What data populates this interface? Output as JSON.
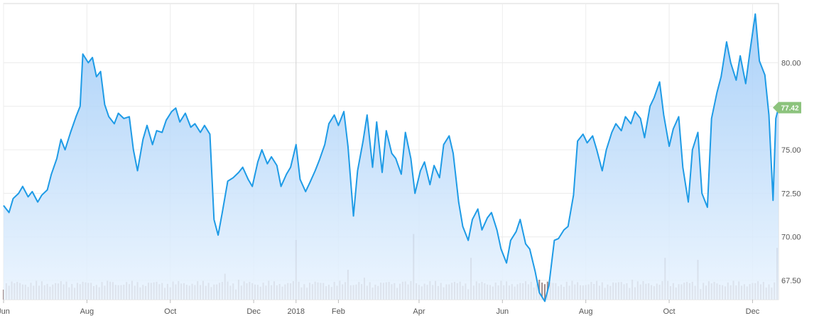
{
  "chart_data": {
    "type": "area",
    "title": "",
    "xlabel": "",
    "ylabel": "",
    "x_range": [
      "2017-06-01",
      "2018-12-20"
    ],
    "ylim": [
      66.4,
      83.4
    ],
    "y_ticks": [
      "67.50",
      "70.00",
      "72.50",
      "75.00",
      "77.50",
      "80.00"
    ],
    "x_ticks": [
      {
        "label": "Jun",
        "date": "2017-06-01"
      },
      {
        "label": "Aug",
        "date": "2017-08-01"
      },
      {
        "label": "Oct",
        "date": "2017-10-01"
      },
      {
        "label": "Dec",
        "date": "2017-12-01"
      },
      {
        "label": "2018",
        "date": "2018-01-01"
      },
      {
        "label": "Feb",
        "date": "2018-02-01"
      },
      {
        "label": "Apr",
        "date": "2018-04-01"
      },
      {
        "label": "Jun",
        "date": "2018-06-01"
      },
      {
        "label": "Aug",
        "date": "2018-08-01"
      },
      {
        "label": "Oct",
        "date": "2018-10-01"
      },
      {
        "label": "Dec",
        "date": "2018-12-01"
      }
    ],
    "grid": true,
    "line_color": "#1e9be6",
    "area_color": "#9cc9f7",
    "volume_color": "#a08a8a",
    "last_value_label": "77.42",
    "last_value_color": "#8cc37d",
    "series": [
      {
        "values": [
          [
            "2017-06-01",
            71.8
          ],
          [
            "2017-06-05",
            71.4
          ],
          [
            "2017-06-08",
            72.2
          ],
          [
            "2017-06-12",
            72.5
          ],
          [
            "2017-06-15",
            72.9
          ],
          [
            "2017-06-19",
            72.3
          ],
          [
            "2017-06-22",
            72.6
          ],
          [
            "2017-06-26",
            72.0
          ],
          [
            "2017-06-29",
            72.4
          ],
          [
            "2017-07-03",
            72.7
          ],
          [
            "2017-07-06",
            73.6
          ],
          [
            "2017-07-10",
            74.5
          ],
          [
            "2017-07-13",
            75.6
          ],
          [
            "2017-07-16",
            75.0
          ],
          [
            "2017-07-20",
            76.0
          ],
          [
            "2017-07-24",
            76.9
          ],
          [
            "2017-07-27",
            77.5
          ],
          [
            "2017-07-29",
            80.5
          ],
          [
            "2017-08-02",
            80.0
          ],
          [
            "2017-08-05",
            80.3
          ],
          [
            "2017-08-08",
            79.2
          ],
          [
            "2017-08-11",
            79.5
          ],
          [
            "2017-08-14",
            77.6
          ],
          [
            "2017-08-17",
            76.9
          ],
          [
            "2017-08-21",
            76.5
          ],
          [
            "2017-08-24",
            77.1
          ],
          [
            "2017-08-28",
            76.8
          ],
          [
            "2017-09-01",
            76.9
          ],
          [
            "2017-09-04",
            75.0
          ],
          [
            "2017-09-07",
            73.8
          ],
          [
            "2017-09-11",
            75.6
          ],
          [
            "2017-09-14",
            76.4
          ],
          [
            "2017-09-18",
            75.3
          ],
          [
            "2017-09-21",
            76.1
          ],
          [
            "2017-09-25",
            76.0
          ],
          [
            "2017-09-28",
            76.7
          ],
          [
            "2017-10-02",
            77.2
          ],
          [
            "2017-10-05",
            77.4
          ],
          [
            "2017-10-08",
            76.6
          ],
          [
            "2017-10-12",
            77.1
          ],
          [
            "2017-10-16",
            76.3
          ],
          [
            "2017-10-19",
            76.5
          ],
          [
            "2017-10-23",
            76.0
          ],
          [
            "2017-10-26",
            76.4
          ],
          [
            "2017-10-30",
            75.9
          ],
          [
            "2017-11-02",
            71.0
          ],
          [
            "2017-11-05",
            70.1
          ],
          [
            "2017-11-08",
            71.4
          ],
          [
            "2017-11-12",
            73.2
          ],
          [
            "2017-11-16",
            73.4
          ],
          [
            "2017-11-20",
            73.7
          ],
          [
            "2017-11-23",
            74.0
          ],
          [
            "2017-11-27",
            73.3
          ],
          [
            "2017-11-30",
            72.9
          ],
          [
            "2017-12-04",
            74.3
          ],
          [
            "2017-12-07",
            75.0
          ],
          [
            "2017-12-11",
            74.2
          ],
          [
            "2017-12-14",
            74.6
          ],
          [
            "2017-12-18",
            74.1
          ],
          [
            "2017-12-21",
            72.9
          ],
          [
            "2017-12-25",
            73.6
          ],
          [
            "2017-12-28",
            74.0
          ],
          [
            "2018-01-01",
            75.3
          ],
          [
            "2018-01-04",
            73.3
          ],
          [
            "2018-01-08",
            72.6
          ],
          [
            "2018-01-11",
            73.1
          ],
          [
            "2018-01-15",
            73.8
          ],
          [
            "2018-01-18",
            74.4
          ],
          [
            "2018-01-22",
            75.3
          ],
          [
            "2018-01-25",
            76.5
          ],
          [
            "2018-01-29",
            77.0
          ],
          [
            "2018-02-01",
            76.4
          ],
          [
            "2018-02-05",
            77.2
          ],
          [
            "2018-02-08",
            75.2
          ],
          [
            "2018-02-12",
            71.2
          ],
          [
            "2018-02-15",
            73.8
          ],
          [
            "2018-02-19",
            75.5
          ],
          [
            "2018-02-22",
            77.0
          ],
          [
            "2018-02-26",
            74.0
          ],
          [
            "2018-03-01",
            76.6
          ],
          [
            "2018-03-05",
            73.7
          ],
          [
            "2018-03-08",
            76.1
          ],
          [
            "2018-03-12",
            74.8
          ],
          [
            "2018-03-15",
            74.5
          ],
          [
            "2018-03-19",
            73.6
          ],
          [
            "2018-03-22",
            76.0
          ],
          [
            "2018-03-26",
            74.5
          ],
          [
            "2018-03-29",
            72.5
          ],
          [
            "2018-04-02",
            73.8
          ],
          [
            "2018-04-05",
            74.3
          ],
          [
            "2018-04-09",
            73.0
          ],
          [
            "2018-04-12",
            74.1
          ],
          [
            "2018-04-16",
            73.4
          ],
          [
            "2018-04-19",
            75.3
          ],
          [
            "2018-04-23",
            75.8
          ],
          [
            "2018-04-26",
            74.8
          ],
          [
            "2018-04-30",
            72.0
          ],
          [
            "2018-05-03",
            70.6
          ],
          [
            "2018-05-07",
            69.8
          ],
          [
            "2018-05-10",
            71.0
          ],
          [
            "2018-05-14",
            71.6
          ],
          [
            "2018-05-17",
            70.4
          ],
          [
            "2018-05-21",
            71.1
          ],
          [
            "2018-05-24",
            71.4
          ],
          [
            "2018-05-28",
            70.4
          ],
          [
            "2018-05-31",
            69.3
          ],
          [
            "2018-06-04",
            68.5
          ],
          [
            "2018-06-07",
            69.8
          ],
          [
            "2018-06-11",
            70.3
          ],
          [
            "2018-06-14",
            71.0
          ],
          [
            "2018-06-18",
            69.6
          ],
          [
            "2018-06-21",
            69.3
          ],
          [
            "2018-06-25",
            68.0
          ],
          [
            "2018-06-28",
            66.8
          ],
          [
            "2018-07-02",
            66.3
          ],
          [
            "2018-07-05",
            67.2
          ],
          [
            "2018-07-09",
            69.8
          ],
          [
            "2018-07-12",
            69.9
          ],
          [
            "2018-07-16",
            70.4
          ],
          [
            "2018-07-19",
            70.6
          ],
          [
            "2018-07-23",
            72.4
          ],
          [
            "2018-07-26",
            75.5
          ],
          [
            "2018-07-30",
            75.9
          ],
          [
            "2018-08-02",
            75.4
          ],
          [
            "2018-08-06",
            75.8
          ],
          [
            "2018-08-09",
            75.0
          ],
          [
            "2018-08-13",
            73.8
          ],
          [
            "2018-08-16",
            75.0
          ],
          [
            "2018-08-20",
            76.0
          ],
          [
            "2018-08-23",
            76.5
          ],
          [
            "2018-08-27",
            76.1
          ],
          [
            "2018-08-30",
            76.9
          ],
          [
            "2018-09-03",
            76.5
          ],
          [
            "2018-09-06",
            77.2
          ],
          [
            "2018-09-10",
            76.8
          ],
          [
            "2018-09-13",
            75.7
          ],
          [
            "2018-09-17",
            77.5
          ],
          [
            "2018-09-20",
            78.0
          ],
          [
            "2018-09-24",
            78.9
          ],
          [
            "2018-09-27",
            77.0
          ],
          [
            "2018-10-01",
            75.2
          ],
          [
            "2018-10-04",
            76.2
          ],
          [
            "2018-10-08",
            76.9
          ],
          [
            "2018-10-11",
            74.0
          ],
          [
            "2018-10-15",
            72.0
          ],
          [
            "2018-10-18",
            75.0
          ],
          [
            "2018-10-22",
            76.0
          ],
          [
            "2018-10-25",
            72.5
          ],
          [
            "2018-10-29",
            71.7
          ],
          [
            "2018-11-01",
            76.8
          ],
          [
            "2018-11-05",
            78.3
          ],
          [
            "2018-11-08",
            79.2
          ],
          [
            "2018-11-12",
            81.2
          ],
          [
            "2018-11-15",
            80.0
          ],
          [
            "2018-11-19",
            79.0
          ],
          [
            "2018-11-22",
            80.4
          ],
          [
            "2018-11-26",
            78.8
          ],
          [
            "2018-11-29",
            80.6
          ],
          [
            "2018-12-03",
            82.8
          ],
          [
            "2018-12-06",
            80.1
          ],
          [
            "2018-12-10",
            79.3
          ],
          [
            "2018-12-13",
            77.0
          ],
          [
            "2018-12-16",
            72.1
          ],
          [
            "2018-12-18",
            76.8
          ],
          [
            "2018-12-20",
            77.42
          ]
        ]
      }
    ],
    "volume": [
      [
        "2017-06-06",
        0.8
      ],
      [
        "2017-06-27",
        0.7
      ],
      [
        "2017-07-26",
        1.1
      ],
      [
        "2017-08-18",
        0.9
      ],
      [
        "2017-09-20",
        1.9
      ],
      [
        "2017-10-15",
        0.7
      ],
      [
        "2017-11-10",
        1.3
      ],
      [
        "2017-11-20",
        1.0
      ],
      [
        "2017-12-01",
        3.3
      ],
      [
        "2018-01-01",
        3.0
      ],
      [
        "2018-01-24",
        1.2
      ],
      [
        "2018-02-08",
        1.5
      ],
      [
        "2018-02-20",
        1.1
      ],
      [
        "2018-03-20",
        0.9
      ],
      [
        "2018-03-28",
        3.3
      ],
      [
        "2018-04-20",
        0.9
      ],
      [
        "2018-05-09",
        2.1
      ],
      [
        "2018-05-16",
        0.9
      ],
      [
        "2018-06-13",
        1.4
      ],
      [
        "2018-06-28",
        1.0
      ],
      [
        "2018-07-09",
        0.8
      ],
      [
        "2018-08-02",
        3.3
      ],
      [
        "2018-09-04",
        1.0
      ],
      [
        "2018-09-28",
        2.1
      ],
      [
        "2018-10-22",
        2.0
      ],
      [
        "2018-11-08",
        2.9
      ],
      [
        "2018-11-20",
        3.3
      ],
      [
        "2018-12-10",
        1.1
      ],
      [
        "2018-12-19",
        2.6
      ]
    ]
  }
}
